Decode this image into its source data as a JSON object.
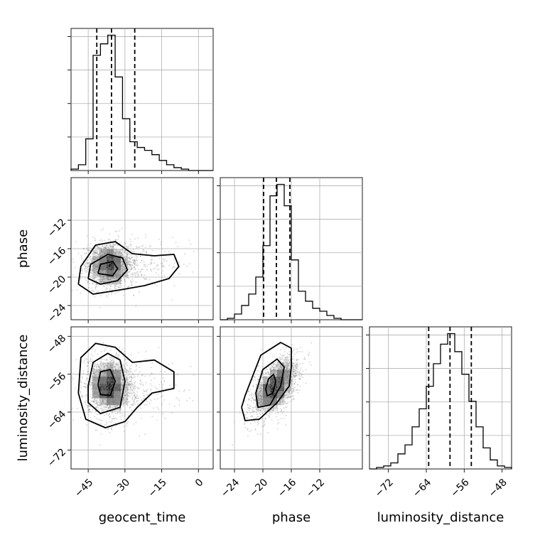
{
  "chart_data": {
    "type": "corner",
    "parameters": [
      "geocent_time",
      "phase",
      "luminosity_distance"
    ],
    "axis_labels": {
      "geocent_time": "geocent_time",
      "phase": "phase",
      "luminosity_distance": "luminosity_distance"
    },
    "ranges": {
      "geocent_time": [
        -52,
        6
      ],
      "phase": [
        -26,
        -6
      ],
      "luminosity_distance": [
        -76,
        -46
      ]
    },
    "ticks": {
      "geocent_time": [
        {
          "v": -45,
          "t": "−45"
        },
        {
          "v": -30,
          "t": "−30"
        },
        {
          "v": -15,
          "t": "−15"
        },
        {
          "v": 0,
          "t": "0"
        }
      ],
      "phase": [
        {
          "v": -24,
          "t": "−24"
        },
        {
          "v": -20,
          "t": "−20"
        },
        {
          "v": -16,
          "t": "−16"
        },
        {
          "v": -12,
          "t": "−12"
        }
      ],
      "luminosity_distance": [
        {
          "v": -72,
          "t": "−72"
        },
        {
          "v": -64,
          "t": "−64"
        },
        {
          "v": -56,
          "t": "−56"
        },
        {
          "v": -48,
          "t": "−48"
        }
      ]
    },
    "histograms": {
      "geocent_time": {
        "bins": [
          -52,
          -49,
          -46,
          -43,
          -40,
          -37,
          -34,
          -31,
          -28,
          -25,
          -22,
          -19,
          -16,
          -13,
          -10,
          -7,
          -4,
          -1,
          2,
          6
        ],
        "counts": [
          1,
          4,
          22,
          80,
          88,
          94,
          65,
          36,
          20,
          16,
          14,
          11,
          7,
          4,
          2,
          1,
          0,
          0,
          0
        ]
      },
      "phase": {
        "bins": [
          -26,
          -25,
          -24,
          -23,
          -22,
          -21,
          -20,
          -19,
          -18,
          -17,
          -16,
          -15,
          -14,
          -13,
          -12,
          -11,
          -10,
          -9,
          -8,
          -7,
          -6
        ],
        "counts": [
          0,
          1,
          4,
          10,
          18,
          30,
          52,
          87,
          95,
          80,
          42,
          20,
          13,
          8,
          6,
          3,
          1,
          0,
          0,
          0
        ]
      },
      "luminosity_distance": {
        "bins": [
          -76,
          -74.5,
          -73,
          -71.5,
          -70,
          -68.5,
          -67,
          -65.5,
          -64,
          -62.5,
          -61,
          -59.5,
          -58,
          -56.5,
          -55,
          -53.5,
          -52,
          -50.5,
          -49,
          -47.5,
          -46
        ],
        "counts": [
          0,
          1,
          2,
          4,
          10,
          16,
          28,
          40,
          55,
          70,
          83,
          90,
          78,
          63,
          45,
          28,
          14,
          6,
          2,
          1
        ]
      }
    },
    "quantiles": {
      "geocent_time": [
        -41.5,
        -35.5,
        -26
      ],
      "phase": [
        -19.9,
        -18.1,
        -16.2
      ],
      "luminosity_distance": [
        -63.5,
        -59.0,
        -54.5
      ]
    },
    "contours": {
      "phase_vs_geocent_time": [
        [
          [
            -49,
            -21
          ],
          [
            -48,
            -18.5
          ],
          [
            -42,
            -15.5
          ],
          [
            -34,
            -15.0
          ],
          [
            -27,
            -16.7
          ],
          [
            -18,
            -17.0
          ],
          [
            -10,
            -16.8
          ],
          [
            -8,
            -18.5
          ],
          [
            -12,
            -20.2
          ],
          [
            -22,
            -21.2
          ],
          [
            -32,
            -21.8
          ],
          [
            -43,
            -22.4
          ],
          [
            -49,
            -21
          ]
        ],
        [
          [
            -45,
            -20.2
          ],
          [
            -44,
            -18.2
          ],
          [
            -37,
            -16.8
          ],
          [
            -31,
            -17.3
          ],
          [
            -29,
            -19.0
          ],
          [
            -33,
            -20.5
          ],
          [
            -40,
            -21.0
          ],
          [
            -45,
            -20.2
          ]
        ],
        [
          [
            -41,
            -19.5
          ],
          [
            -40,
            -18.2
          ],
          [
            -35,
            -17.8
          ],
          [
            -33,
            -18.8
          ],
          [
            -35,
            -19.8
          ],
          [
            -41,
            -19.5
          ]
        ]
      ],
      "luminosity_distance_vs_geocent_time": [
        [
          [
            -49,
            -60
          ],
          [
            -48,
            -52.5
          ],
          [
            -42,
            -49.5
          ],
          [
            -34,
            -50.3
          ],
          [
            -27,
            -53.5
          ],
          [
            -18,
            -53.0
          ],
          [
            -10,
            -55.5
          ],
          [
            -10,
            -59.0
          ],
          [
            -19,
            -60.0
          ],
          [
            -25,
            -63.0
          ],
          [
            -30,
            -66.0
          ],
          [
            -38,
            -67.3
          ],
          [
            -46,
            -65.5
          ],
          [
            -49,
            -60
          ]
        ],
        [
          [
            -45,
            -58.5
          ],
          [
            -43,
            -53.5
          ],
          [
            -37,
            -51.6
          ],
          [
            -32,
            -53.0
          ],
          [
            -30,
            -57.5
          ],
          [
            -32,
            -63.0
          ],
          [
            -40,
            -64.3
          ],
          [
            -45,
            -62.0
          ],
          [
            -45,
            -58.5
          ]
        ],
        [
          [
            -41,
            -58.2
          ],
          [
            -40,
            -55.5
          ],
          [
            -36,
            -55.0
          ],
          [
            -34,
            -57.5
          ],
          [
            -36,
            -60.5
          ],
          [
            -40,
            -60.3
          ],
          [
            -41,
            -58.2
          ]
        ]
      ],
      "luminosity_distance_vs_phase": [
        [
          [
            -23.0,
            -63
          ],
          [
            -22.5,
            -60.5
          ],
          [
            -20.3,
            -52.0
          ],
          [
            -17.5,
            -49.3
          ],
          [
            -16.0,
            -50.5
          ],
          [
            -16.0,
            -54.5
          ],
          [
            -16.3,
            -58.5
          ],
          [
            -18.0,
            -62.0
          ],
          [
            -20.5,
            -65.5
          ],
          [
            -22.5,
            -65.8
          ],
          [
            -23.0,
            -63
          ]
        ],
        [
          [
            -21.0,
            -60
          ],
          [
            -20.0,
            -55.0
          ],
          [
            -18.0,
            -52.8
          ],
          [
            -17.0,
            -54.5
          ],
          [
            -17.5,
            -58.5
          ],
          [
            -19.0,
            -62.5
          ],
          [
            -20.7,
            -63.0
          ],
          [
            -21.0,
            -60
          ]
        ],
        [
          [
            -19.6,
            -59
          ],
          [
            -19.2,
            -57.0
          ],
          [
            -18.5,
            -56.0
          ],
          [
            -18.2,
            -57.5
          ],
          [
            -18.6,
            -60.0
          ],
          [
            -19.4,
            -60.6
          ],
          [
            -19.6,
            -59
          ]
        ]
      ]
    },
    "grid": true
  }
}
